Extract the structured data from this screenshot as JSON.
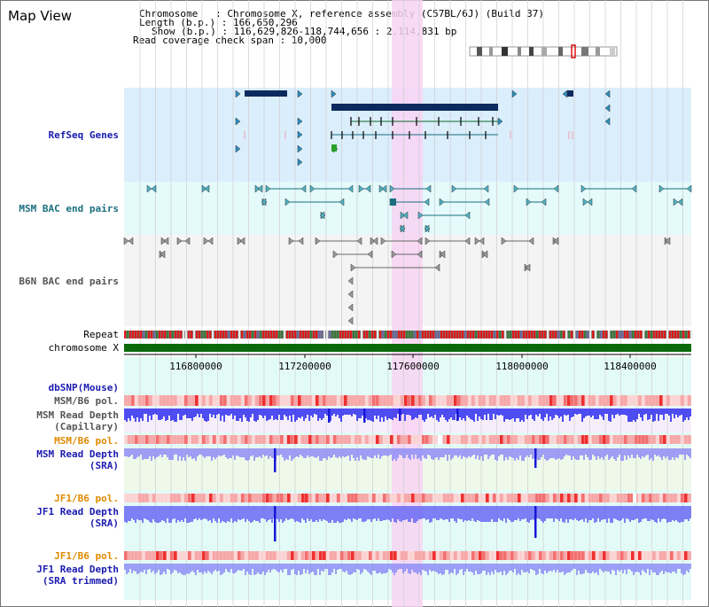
{
  "app": {
    "title": "Map View"
  },
  "header": {
    "chromosome_line": "Chromosome   : Chromosome X, reference assembly (C57BL/6J) (Build 37)",
    "length_line": "Length (b.p.) : 166,650,296",
    "show_line": "Show (b.p.) : 116,629,826-118,744,656 : 2,114,831 bp",
    "coverage_line": "Read coverage check span : 10,000"
  },
  "tracks": {
    "refseq": {
      "label": "RefSeq Genes",
      "color": "#1b1bb0"
    },
    "msm_bac": {
      "label": "MSM BAC end pairs",
      "color": "#1a6f7f"
    },
    "b6n_bac": {
      "label": "B6N BAC end pairs",
      "color": "#555555"
    },
    "repeat": {
      "label": "Repeat",
      "color": "#000000"
    },
    "chromosome": {
      "label": "chromosome X",
      "color": "#000000"
    },
    "dbsnp": {
      "label": "dbSNP(Mouse)",
      "color": "#1b1bb0"
    },
    "msm_b6_pol_1": {
      "label": "MSM/B6 pol.",
      "color": "#555555"
    },
    "msm_read_depth_cap": {
      "label": "MSM Read Depth\n(Capillary)",
      "color": "#555555"
    },
    "msm_b6_pol_2": {
      "label": "MSM/B6 pol.",
      "color": "#e08a00"
    },
    "msm_read_depth_sra": {
      "label": "MSM Read Depth\n(SRA)",
      "color": "#1b1bb0"
    },
    "jf1_b6_pol_1": {
      "label": "JF1/B6 pol.",
      "color": "#e08a00"
    },
    "jf1_read_depth_sra": {
      "label": "JF1 Read Depth\n(SRA)",
      "color": "#1b1bb0"
    },
    "jf1_b6_pol_2": {
      "label": "JF1/B6 pol.",
      "color": "#e08a00"
    },
    "jf1_read_depth_trim": {
      "label": "JF1 Read Depth\n(SRA trimmed)",
      "color": "#1b1bb0"
    }
  },
  "axis": {
    "ticks": [
      "116800000",
      "117200000",
      "117600000",
      "118000000",
      "118400000"
    ]
  },
  "colors": {
    "highlight": "#f8d3f3",
    "refseq_bg": "#dbeefb",
    "msm_bg": "#e4fafb",
    "b6n_bg": "#f4f4f4",
    "chromosome_bar": "#0a6a0a",
    "depth_blue": "#4a4af0",
    "pol_red": "#f05050",
    "gene_dark": "#0c2a5e"
  }
}
